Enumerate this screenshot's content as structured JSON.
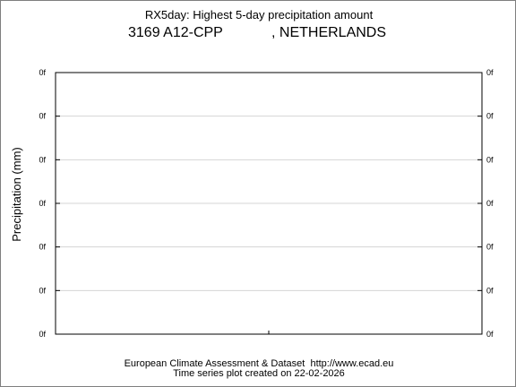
{
  "chart_data": {
    "type": "line",
    "title": "RX5day: Highest 5-day precipitation amount",
    "station": {
      "id_name": "3169 A12-CPP",
      "country": ", NETHERLANDS"
    },
    "ylabel": "Precipitation (mm)",
    "xlabel": "",
    "y_tick_labels": [
      "0f",
      "0f",
      "0f",
      "0f",
      "0f",
      "0f",
      "0f"
    ],
    "x_tick_labels": [],
    "series": [],
    "grid": true,
    "legend": "none"
  },
  "footer": {
    "line1": "European Climate Assessment & Dataset  http://www.ecad.eu",
    "line2": "Time series plot created on 22-02-2026"
  }
}
